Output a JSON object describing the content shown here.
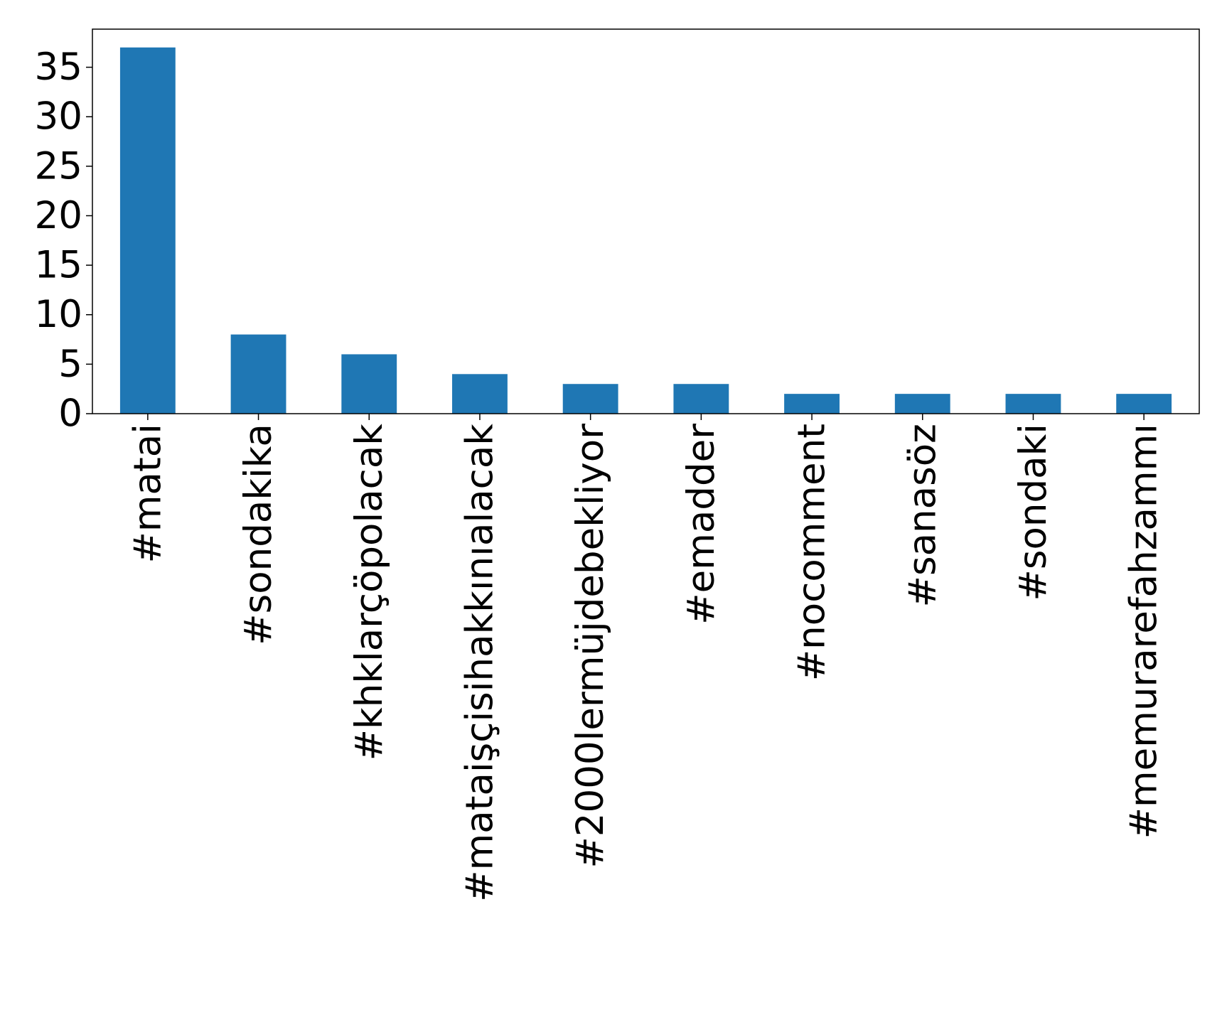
{
  "chart_data": {
    "type": "bar",
    "categories": [
      "#matai",
      "#sondakika",
      "#khklarçöpolacak",
      "#mataişçisihakkınıalacak",
      "#2000lermüjdebekliyor",
      "#emadder",
      "#nocomment",
      "#sanasöz",
      "#sondaki",
      "#memurarefahzammı"
    ],
    "values": [
      37,
      8,
      6,
      4,
      3,
      3,
      2,
      2,
      2,
      2
    ],
    "color": "#1f77b4",
    "ylim": [
      0,
      38.85
    ],
    "yticks": [
      0,
      5,
      10,
      15,
      20,
      25,
      30,
      35
    ],
    "grid": false
  }
}
